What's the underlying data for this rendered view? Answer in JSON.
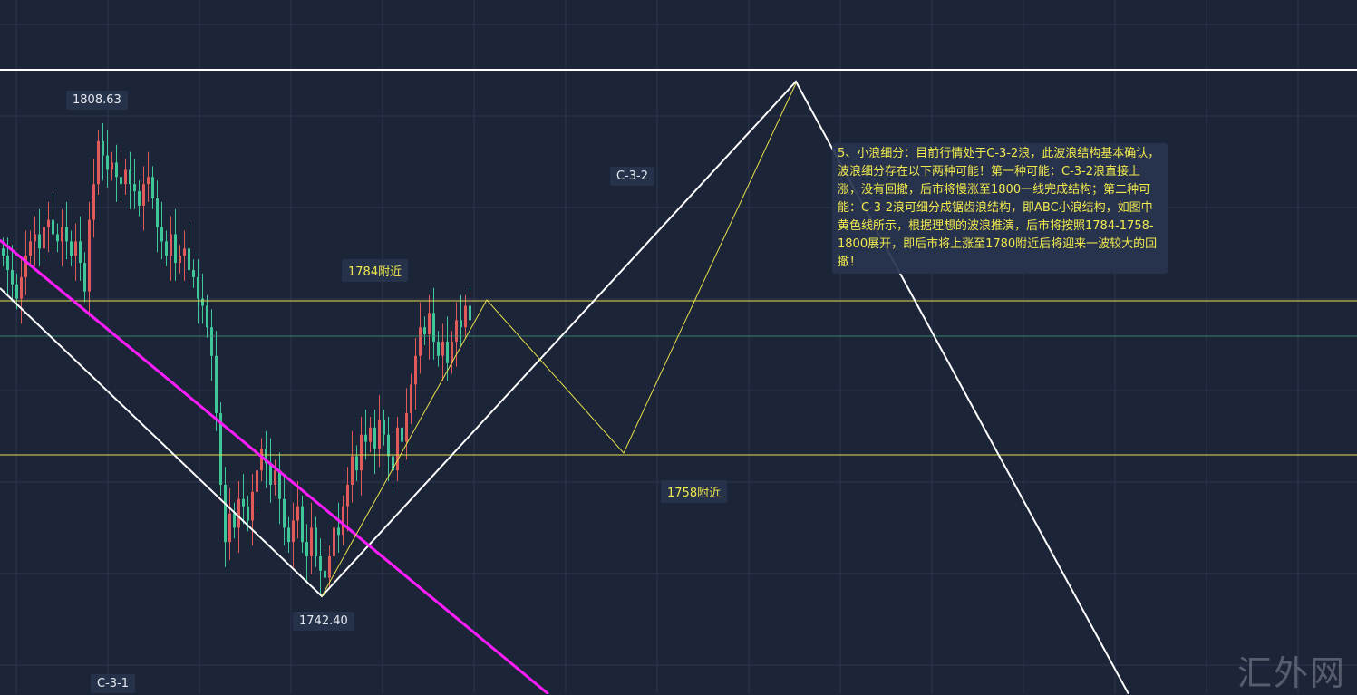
{
  "chart_data": {
    "type": "candlestick",
    "title": "",
    "colors": {
      "up": "#e05a5a",
      "down": "#3fc79a",
      "background": "#1c2438",
      "channel": "#ffffff",
      "trend": "#ff1dff",
      "projection": "#f2e94e"
    },
    "closes": [
      1790,
      1788,
      1786,
      1784,
      1787,
      1790,
      1792,
      1793,
      1791,
      1794,
      1795,
      1793,
      1792,
      1794,
      1792,
      1790,
      1792,
      1789,
      1785,
      1795,
      1800,
      1806,
      1804,
      1802,
      1803,
      1801,
      1800,
      1802,
      1800,
      1799,
      1797,
      1800,
      1801,
      1798,
      1794,
      1792,
      1790,
      1793,
      1789,
      1790,
      1791,
      1788,
      1787,
      1784,
      1783,
      1780,
      1776,
      1768,
      1758,
      1750,
      1754,
      1752,
      1756,
      1755,
      1753,
      1757,
      1760,
      1763,
      1761,
      1758,
      1760,
      1756,
      1752,
      1750,
      1753,
      1755,
      1750,
      1748,
      1752,
      1748,
      1746,
      1745,
      1748,
      1752,
      1751,
      1755,
      1758,
      1762,
      1760,
      1765,
      1764,
      1766,
      1763,
      1767,
      1765,
      1762,
      1760,
      1766,
      1764,
      1768,
      1772,
      1776,
      1780,
      1779,
      1782,
      1778,
      1776,
      1778,
      1775,
      1778,
      1781,
      1780,
      1783,
      1781
    ],
    "price_labels": {
      "high": "1808.63",
      "low": "1742.40"
    },
    "levels": {
      "upper": "1784附近",
      "lower": "1758附近"
    },
    "wave_labels": {
      "current": "C-3-2",
      "previous": "C-3-1"
    },
    "projection_path": [
      1742.4,
      1784,
      1758,
      1800
    ]
  },
  "note": "5、小浪细分：目前行情处于C-3-2浪，此波浪结构基本确认，波浪细分存在以下两种可能！第一种可能：C-3-2浪直接上涨，没有回撤，后市将慢涨至1800一线完成结构；第二种可能：C-3-2浪可细分成锯齿浪结构，即ABC小浪结构，如图中黄色线所示，根据理想的波浪推演，后市将按照1784-1758-1800展开，即后市将上涨至1780附近后将迎来一波较大的回撤！",
  "watermark": "汇外网"
}
